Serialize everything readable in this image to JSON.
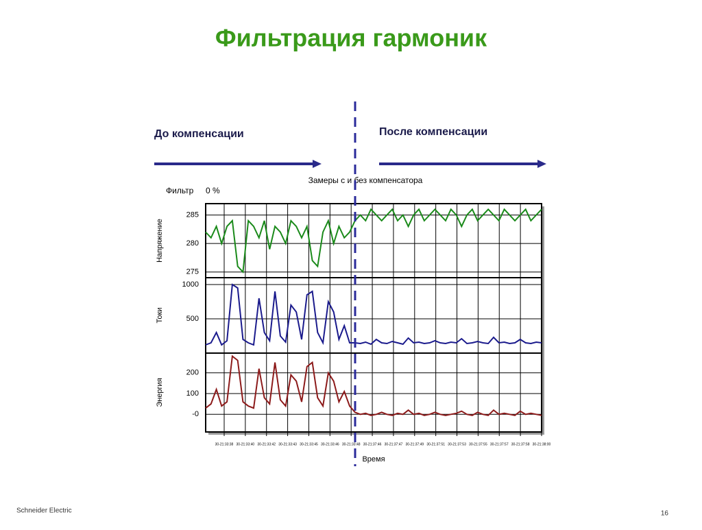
{
  "title": "Фильтрация гармоник",
  "before_label": "До компенсации",
  "after_label": "После компенсации",
  "chart_title": "Замеры с и без компенсатора",
  "filter_label": "Фильтр",
  "filter_value": "0 %",
  "time_axis": {
    "label": "Время",
    "ticks": [
      "30-21:33:38",
      "30-21:33:40",
      "30-21:33:42",
      "30-21:33:43",
      "30-21:33:45",
      "30-21:33:46",
      "30-21:33:48",
      "30-21:37:46",
      "30-21:37:47",
      "30-21:37:49",
      "30-21:37:51",
      "30-21:37:53",
      "30-21:37:55",
      "30-21:37:57",
      "30-21:37:58",
      "30-21:38:00"
    ]
  },
  "footer": "Schneider Electric",
  "page_number": "16",
  "chart_data": [
    {
      "type": "line",
      "y_label": "Напряжение",
      "ylim": [
        274,
        287
      ],
      "yticks": [
        275,
        280,
        285
      ],
      "series": [
        {
          "color": "#1a8a1a",
          "values": [
            282,
            281,
            283,
            280,
            283,
            284,
            276,
            275,
            284,
            283,
            281,
            284,
            279,
            283,
            282,
            280,
            284,
            283,
            281,
            283,
            277,
            276,
            282,
            284,
            280,
            283,
            281,
            282,
            284,
            285,
            284,
            286,
            285,
            284,
            285,
            286,
            284,
            285,
            283,
            285,
            286,
            284,
            285,
            286,
            285,
            284,
            286,
            285,
            283,
            285,
            286,
            284,
            285,
            286,
            285,
            284,
            286,
            285,
            284,
            285,
            286,
            284,
            285,
            286
          ]
        }
      ]
    },
    {
      "type": "line",
      "y_label": "Токи",
      "ylim": [
        0,
        1100
      ],
      "yticks": [
        500,
        1000
      ],
      "series": [
        {
          "color": "#1a1a8c",
          "values": [
            120,
            150,
            300,
            120,
            180,
            1000,
            950,
            200,
            150,
            120,
            800,
            300,
            180,
            900,
            250,
            160,
            700,
            600,
            200,
            850,
            900,
            300,
            150,
            750,
            600,
            200,
            400,
            150,
            150,
            140,
            160,
            130,
            200,
            150,
            140,
            170,
            150,
            130,
            220,
            150,
            160,
            140,
            150,
            180,
            150,
            140,
            160,
            150,
            210,
            140,
            150,
            170,
            150,
            140,
            230,
            150,
            160,
            140,
            150,
            200,
            150,
            140,
            160,
            150
          ]
        }
      ]
    },
    {
      "type": "line",
      "y_label": "Энергия",
      "ylim": [
        -85,
        295
      ],
      "yticks": [
        {
          "value": 0,
          "label": "-0"
        },
        100,
        200
      ],
      "series": [
        {
          "color": "#8c1a1a",
          "values": [
            30,
            50,
            120,
            40,
            60,
            280,
            260,
            60,
            40,
            30,
            220,
            80,
            50,
            250,
            70,
            40,
            190,
            160,
            60,
            230,
            250,
            80,
            40,
            200,
            160,
            60,
            110,
            40,
            10,
            0,
            5,
            -5,
            0,
            10,
            0,
            -5,
            5,
            0,
            20,
            0,
            5,
            -5,
            0,
            10,
            0,
            -5,
            0,
            5,
            15,
            0,
            -5,
            10,
            0,
            -5,
            20,
            0,
            5,
            0,
            -5,
            15,
            0,
            5,
            0,
            -5
          ]
        }
      ]
    }
  ]
}
